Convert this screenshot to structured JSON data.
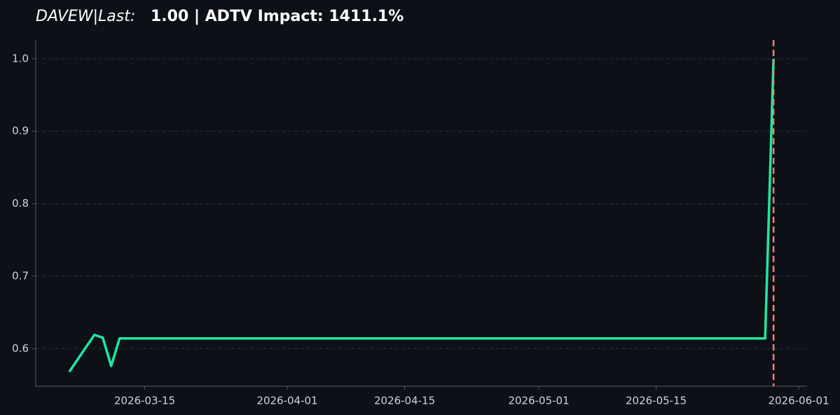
{
  "chart_data": {
    "type": "line",
    "title_ticker": "DAVEW|Last:",
    "title": "1.00 | ADTV Impact: 1411.1%",
    "x": [
      "2026-03-06",
      "2026-03-09",
      "2026-03-10",
      "2026-03-11",
      "2026-03-12",
      "2026-05-28",
      "2026-05-29"
    ],
    "series": [
      {
        "name": "DAVEW",
        "color": "#1de9a0",
        "values": [
          0.568,
          0.619,
          0.615,
          0.576,
          0.614,
          0.614,
          1.0
        ]
      }
    ],
    "vline": {
      "x": "2026-05-29",
      "color": "#f4806e"
    },
    "xlim": [
      "2026-03-02",
      "2026-06-02"
    ],
    "xticks": [
      "2026-03-15",
      "2026-04-01",
      "2026-04-15",
      "2026-05-01",
      "2026-05-15",
      "2026-06-01"
    ],
    "ylim": [
      0.548,
      1.026
    ],
    "yticks": [
      0.6,
      0.7,
      0.8,
      0.9,
      {
        "value": 1,
        "label": "1.0"
      }
    ],
    "grid": true
  }
}
